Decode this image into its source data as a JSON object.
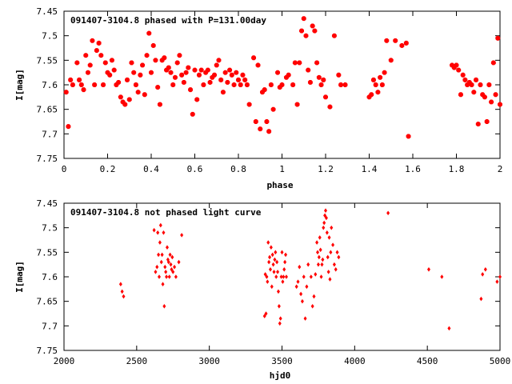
{
  "chart_data": [
    {
      "type": "scatter",
      "title": "091407-3104.8 phased with P=131.00day",
      "xlabel": "phase",
      "ylabel": "I[mag]",
      "xlim": [
        0,
        2
      ],
      "ylim": [
        7.75,
        7.45
      ],
      "y_inverted": true,
      "xticks": [
        "0",
        "0.2",
        "0.4",
        "0.6",
        "0.8",
        "1",
        "1.2",
        "1.4",
        "1.6",
        "1.8",
        "2"
      ],
      "yticks": [
        "7.45",
        "7.5",
        "7.55",
        "7.6",
        "7.65",
        "7.7",
        "7.75"
      ],
      "point_color": "#ff0000",
      "series": [
        {
          "x": [
            0.01,
            0.02,
            0.03,
            0.04,
            0.06,
            0.07,
            0.08,
            0.09,
            0.1,
            0.11,
            0.12,
            0.13,
            0.14,
            0.15,
            0.16,
            0.17,
            0.18,
            0.19,
            0.2,
            0.21,
            0.22,
            0.23,
            0.24,
            0.25,
            0.26,
            0.27,
            0.28,
            0.29,
            0.3,
            0.31,
            0.32,
            0.33,
            0.34,
            0.35,
            0.36,
            0.37,
            0.38,
            0.39,
            0.4,
            0.41,
            0.42,
            0.43,
            0.44,
            0.45,
            0.46,
            0.47,
            0.48,
            0.49,
            0.5,
            0.51,
            0.52,
            0.53,
            0.54,
            0.55,
            0.56,
            0.57,
            0.58,
            0.59,
            0.6,
            0.61,
            0.62,
            0.63,
            0.64,
            0.65,
            0.66,
            0.67,
            0.68,
            0.69,
            0.7,
            0.71,
            0.72,
            0.73,
            0.74,
            0.75,
            0.76,
            0.77,
            0.78,
            0.79,
            0.8,
            0.81,
            0.82,
            0.83,
            0.84,
            0.85,
            0.87,
            0.88,
            0.89,
            0.9,
            0.91,
            0.92,
            0.93,
            0.94,
            0.95,
            0.96,
            0.98,
            0.99,
            1.0,
            1.02,
            1.03,
            1.05,
            1.06,
            1.07,
            1.08,
            1.09,
            1.1,
            1.11,
            1.12,
            1.13,
            1.14,
            1.15,
            1.16,
            1.17,
            1.18,
            1.19,
            1.2,
            1.22,
            1.24,
            1.26,
            1.27,
            1.29,
            1.4,
            1.41,
            1.42,
            1.43,
            1.44,
            1.45,
            1.46,
            1.47,
            1.48,
            1.5,
            1.52,
            1.55,
            1.57,
            1.58,
            1.78,
            1.79,
            1.8,
            1.81,
            1.82,
            1.83,
            1.84,
            1.85,
            1.86,
            1.87,
            1.88,
            1.89,
            1.9,
            1.91,
            1.92,
            1.93,
            1.94,
            1.95,
            1.96,
            1.97,
            1.98,
            1.99,
            2.0
          ],
          "y": [
            7.615,
            7.685,
            7.59,
            7.6,
            7.555,
            7.59,
            7.6,
            7.61,
            7.54,
            7.575,
            7.56,
            7.51,
            7.6,
            7.53,
            7.515,
            7.54,
            7.6,
            7.555,
            7.575,
            7.58,
            7.55,
            7.57,
            7.6,
            7.595,
            7.625,
            7.635,
            7.64,
            7.59,
            7.63,
            7.555,
            7.575,
            7.6,
            7.615,
            7.58,
            7.56,
            7.62,
            7.54,
            7.495,
            7.575,
            7.52,
            7.55,
            7.605,
            7.64,
            7.55,
            7.545,
            7.57,
            7.565,
            7.575,
            7.6,
            7.585,
            7.555,
            7.54,
            7.58,
            7.595,
            7.575,
            7.565,
            7.61,
            7.66,
            7.57,
            7.63,
            7.58,
            7.57,
            7.6,
            7.575,
            7.57,
            7.595,
            7.585,
            7.58,
            7.56,
            7.55,
            7.59,
            7.615,
            7.575,
            7.595,
            7.57,
            7.58,
            7.6,
            7.575,
            7.59,
            7.6,
            7.58,
            7.59,
            7.6,
            7.64,
            7.545,
            7.675,
            7.56,
            7.69,
            7.615,
            7.61,
            7.675,
            7.695,
            7.6,
            7.65,
            7.575,
            7.605,
            7.6,
            7.585,
            7.58,
            7.6,
            7.555,
            7.64,
            7.555,
            7.49,
            7.465,
            7.5,
            7.57,
            7.595,
            7.48,
            7.49,
            7.555,
            7.585,
            7.6,
            7.59,
            7.625,
            7.645,
            7.5,
            7.58,
            7.6,
            7.6,
            7.625,
            7.62,
            7.59,
            7.6,
            7.615,
            7.585,
            7.6,
            7.575,
            7.51,
            7.55,
            7.51,
            7.52,
            7.515,
            7.705,
            7.56,
            7.565,
            7.56,
            7.57,
            7.62,
            7.58,
            7.59,
            7.6,
            7.595,
            7.6,
            7.615,
            7.59,
            7.68,
            7.6,
            7.62,
            7.625,
            7.675,
            7.6,
            7.635,
            7.555,
            7.62,
            7.505,
            7.64
          ]
        }
      ]
    },
    {
      "type": "scatter",
      "title": "091407-3104.8 not phased light curve",
      "xlabel": "hjd0",
      "ylabel": "I[mag]",
      "xlim": [
        2000,
        5000
      ],
      "ylim": [
        7.75,
        7.45
      ],
      "y_inverted": true,
      "xticks": [
        "2000",
        "2500",
        "3000",
        "3500",
        "4000",
        "4500",
        "5000"
      ],
      "yticks": [
        "7.45",
        "7.5",
        "7.55",
        "7.6",
        "7.65",
        "7.7",
        "7.75"
      ],
      "point_color": "#ff0000",
      "series": [
        {
          "x": [
            2390,
            2400,
            2410,
            2620,
            2630,
            2640,
            2645,
            2650,
            2655,
            2660,
            2665,
            2670,
            2675,
            2680,
            2685,
            2690,
            2695,
            2700,
            2705,
            2710,
            2715,
            2720,
            2725,
            2730,
            2735,
            2740,
            2745,
            2750,
            2760,
            2770,
            2790,
            2810,
            3380,
            3385,
            3390,
            3395,
            3400,
            3405,
            3410,
            3415,
            3420,
            3425,
            3430,
            3435,
            3440,
            3445,
            3450,
            3455,
            3460,
            3465,
            3470,
            3475,
            3480,
            3485,
            3490,
            3495,
            3500,
            3505,
            3510,
            3515,
            3520,
            3525,
            3530,
            3600,
            3610,
            3620,
            3630,
            3640,
            3650,
            3660,
            3670,
            3680,
            3700,
            3710,
            3720,
            3730,
            3740,
            3745,
            3750,
            3755,
            3760,
            3765,
            3770,
            3775,
            3780,
            3785,
            3790,
            3795,
            3800,
            3805,
            3810,
            3815,
            3820,
            3825,
            3830,
            3835,
            3840,
            3850,
            3860,
            3870,
            3880,
            3890,
            4230,
            4510,
            4600,
            4650,
            4870,
            4880,
            4900,
            4980,
            5000
          ],
          "y": [
            7.615,
            7.63,
            7.64,
            7.505,
            7.59,
            7.58,
            7.51,
            7.555,
            7.6,
            7.53,
            7.495,
            7.57,
            7.555,
            7.615,
            7.51,
            7.66,
            7.58,
            7.59,
            7.6,
            7.54,
            7.565,
            7.57,
            7.6,
            7.555,
            7.575,
            7.585,
            7.56,
            7.59,
            7.58,
            7.6,
            7.57,
            7.515,
            7.68,
            7.595,
            7.675,
            7.6,
            7.61,
            7.53,
            7.57,
            7.56,
            7.585,
            7.54,
            7.62,
            7.555,
            7.575,
            7.59,
            7.565,
            7.55,
            7.6,
            7.57,
            7.59,
            7.63,
            7.66,
            7.695,
            7.685,
            7.6,
            7.55,
            7.61,
            7.6,
            7.585,
            7.57,
            7.555,
            7.6,
            7.62,
            7.61,
            7.58,
            7.635,
            7.65,
            7.6,
            7.685,
            7.62,
            7.575,
            7.6,
            7.66,
            7.64,
            7.595,
            7.53,
            7.55,
            7.575,
            7.56,
            7.52,
            7.545,
            7.6,
            7.575,
            7.565,
            7.5,
            7.49,
            7.475,
            7.465,
            7.48,
            7.51,
            7.56,
            7.59,
            7.52,
            7.605,
            7.55,
            7.5,
            7.535,
            7.575,
            7.585,
            7.55,
            7.56,
            7.47,
            7.585,
            7.6,
            7.705,
            7.645,
            7.595,
            7.585,
            7.61,
            7.6
          ]
        }
      ]
    }
  ]
}
